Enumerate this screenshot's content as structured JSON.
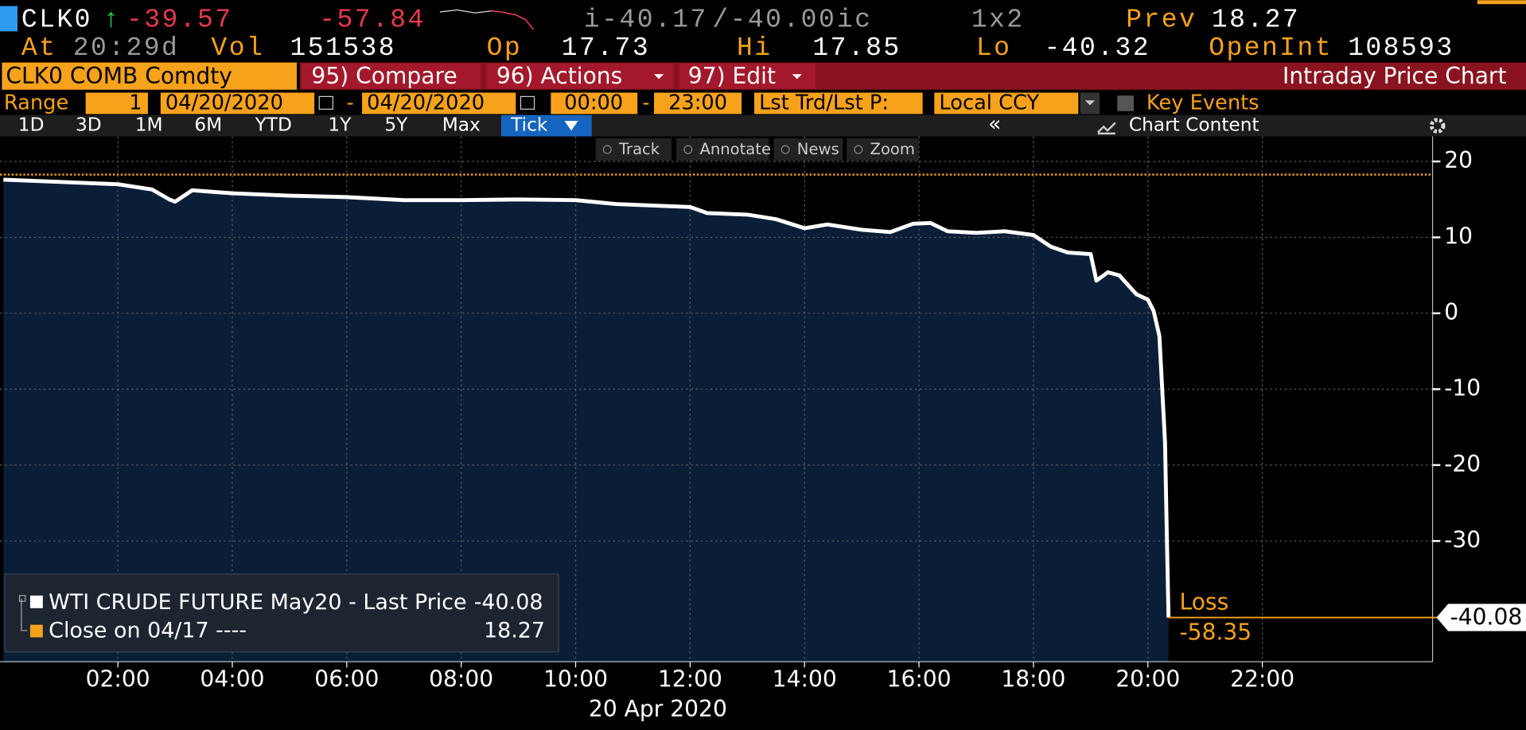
{
  "header": {
    "ticker": "CLK0",
    "arrow": "↑",
    "last": "-39.57",
    "change": "-57.84",
    "bid": "i-40.17",
    "ask": "/-40.00",
    "ask_suffix": "ic",
    "size": "1x2",
    "prev_label": "Prev",
    "prev": "18.27",
    "at_label": "At",
    "time": "20:29d",
    "vol_label": "Vol",
    "vol": "151538",
    "open_label": "Op",
    "open": "17.73",
    "high_label": "Hi",
    "high": "17.85",
    "low_label": "Lo",
    "low": "-40.32",
    "oi_label": "OpenInt",
    "oi": "108593"
  },
  "toolbar": {
    "security": "CLK0 COMB Comdty",
    "compare": "95) Compare",
    "actions": "96) Actions",
    "edit": "97) Edit",
    "title": "Intraday Price Chart"
  },
  "range": {
    "label": "Range",
    "count": "1",
    "start": "04/20/2020",
    "sep1": "-",
    "end": "04/20/2020",
    "start_time": "00:00",
    "sep2": "-",
    "end_time": "23:00",
    "price_type": "Lst Trd/Lst P:",
    "currency": "Local CCY",
    "key_events": "Key Events"
  },
  "periods": {
    "buttons": [
      "1D",
      "3D",
      "1M",
      "6M",
      "YTD",
      "1Y",
      "5Y",
      "Max"
    ],
    "selected": "Tick",
    "collapse": "«",
    "chart_content": "Chart Content"
  },
  "tools": [
    "Track",
    "Annotate",
    "News",
    "Zoom"
  ],
  "chart_data": {
    "type": "line",
    "x_label": "20 Apr 2020",
    "xlim": [
      0,
      25
    ],
    "xticks": [
      {
        "value": 2,
        "label": "02:00"
      },
      {
        "value": 4,
        "label": "04:00"
      },
      {
        "value": 6,
        "label": "06:00"
      },
      {
        "value": 8,
        "label": "08:00"
      },
      {
        "value": 10,
        "label": "10:00"
      },
      {
        "value": 12,
        "label": "12:00"
      },
      {
        "value": 14,
        "label": "14:00"
      },
      {
        "value": 16,
        "label": "16:00"
      },
      {
        "value": 18,
        "label": "18:00"
      },
      {
        "value": 20,
        "label": "20:00"
      },
      {
        "value": 22,
        "label": "22:00"
      }
    ],
    "ylim": [
      -45.9,
      23.3
    ],
    "yticks": [
      -30,
      -20,
      -10,
      0,
      10,
      20
    ],
    "grid": true,
    "series": [
      {
        "name": "WTI CRUDE FUTURE May20 - Last Price",
        "color": "#ffffff",
        "area_color": "#0b1e38",
        "last_value": -40.08,
        "x": [
          0,
          1,
          2,
          2.6,
          2.9,
          3.0,
          3.3,
          4,
          5,
          6,
          7,
          8,
          9,
          10,
          10.7,
          11,
          12,
          12.3,
          13,
          13.5,
          14,
          14.4,
          15,
          15.5,
          15.9,
          16.2,
          16.5,
          17,
          17.5,
          18,
          18.3,
          18.6,
          19.0,
          19.1,
          19.3,
          19.5,
          19.8,
          20.0,
          20.1,
          20.2,
          20.25,
          20.3,
          20.33,
          20.36
        ],
        "values": [
          17.6,
          17.3,
          17.0,
          16.3,
          15.0,
          14.7,
          16.2,
          15.8,
          15.5,
          15.3,
          14.9,
          14.9,
          15.0,
          14.9,
          14.4,
          14.3,
          14.0,
          13.2,
          13.0,
          12.4,
          11.2,
          11.7,
          11.0,
          10.7,
          11.8,
          11.9,
          10.8,
          10.6,
          10.8,
          10.3,
          8.8,
          8.0,
          7.8,
          4.3,
          5.4,
          5.0,
          2.5,
          1.8,
          0.3,
          -3,
          -10,
          -17,
          -29,
          -40.08
        ]
      }
    ],
    "reference": {
      "name": "Close on 04/17 ----",
      "value": 18.27,
      "color": "#f7a21b"
    },
    "annotation": {
      "label": "Loss",
      "value": -58.35,
      "color": "#f7a21b"
    }
  }
}
